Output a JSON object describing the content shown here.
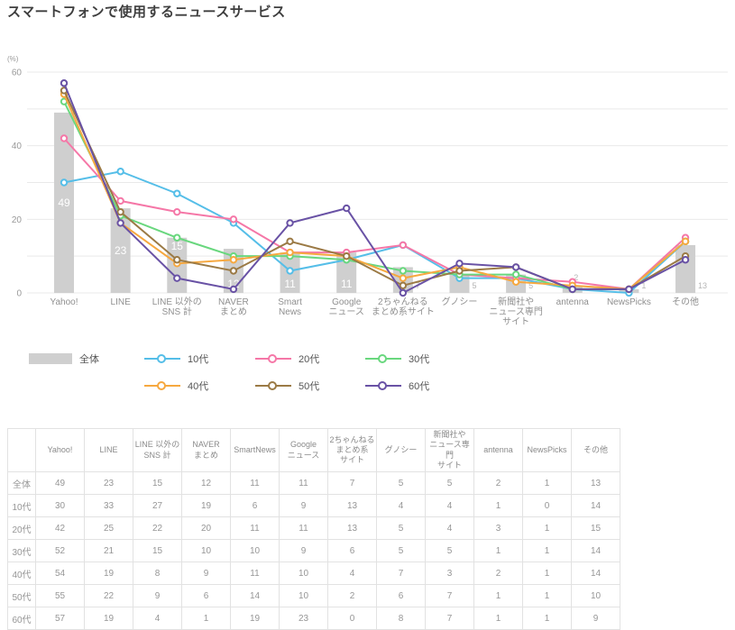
{
  "chart_data": {
    "type": "bar+line",
    "title": "スマートフォンで使用するニュースサービス",
    "unit_label": "(%)",
    "ylim": [
      0,
      60
    ],
    "ytick_labels": [
      0,
      20,
      40,
      60
    ],
    "grid_step": 10,
    "grid": true,
    "legend_position": "bottom",
    "categories": [
      "Yahoo!",
      "LINE",
      "LINE 以外の SNS 計",
      "NAVER まとめ",
      "Smart News",
      "Google ニュース",
      "2ちゃんねる まとめ系サイト",
      "グノシー",
      "新聞社や ニュース専門 サイト",
      "antenna",
      "NewsPicks",
      "その他"
    ],
    "category_axis_lines": [
      [
        "Yahoo!"
      ],
      [
        "LINE"
      ],
      [
        "LINE 以外の",
        "SNS 計"
      ],
      [
        "NAVER",
        "まとめ"
      ],
      [
        "Smart",
        "News"
      ],
      [
        "Google",
        "ニュース"
      ],
      [
        "2ちゃんねる",
        "まとめ系サイト"
      ],
      [
        "グノシー"
      ],
      [
        "新聞社や",
        "ニュース専門",
        "サイト"
      ],
      [
        "antenna"
      ],
      [
        "NewsPicks"
      ],
      [
        "その他"
      ]
    ],
    "bars": {
      "name": "全体",
      "color": "#CFCFCF",
      "values": [
        49,
        23,
        15,
        12,
        11,
        11,
        7,
        5,
        5,
        2,
        1,
        13
      ],
      "label_positions": [
        "middle",
        "middle",
        "top",
        "bottom",
        "bottom",
        "bottom",
        "right",
        "right",
        "right",
        "above",
        "right",
        "right"
      ]
    },
    "series": [
      {
        "name": "10代",
        "id": "10s",
        "color": "#55BEE8",
        "values": [
          30,
          33,
          27,
          19,
          6,
          9,
          13,
          4,
          4,
          1,
          0,
          14
        ]
      },
      {
        "name": "20代",
        "id": "20s",
        "color": "#F577A7",
        "values": [
          42,
          25,
          22,
          20,
          11,
          11,
          13,
          5,
          4,
          3,
          1,
          15
        ]
      },
      {
        "name": "30代",
        "id": "30s",
        "color": "#69D77E",
        "values": [
          52,
          21,
          15,
          10,
          10,
          9,
          6,
          5,
          5,
          1,
          1,
          14
        ]
      },
      {
        "name": "40代",
        "id": "40s",
        "color": "#F6A83F",
        "values": [
          54,
          19,
          8,
          9,
          11,
          10,
          4,
          7,
          3,
          2,
          1,
          14
        ]
      },
      {
        "name": "50代",
        "id": "50s",
        "color": "#9B7A45",
        "values": [
          55,
          22,
          9,
          6,
          14,
          10,
          2,
          6,
          7,
          1,
          1,
          10
        ]
      },
      {
        "name": "60代",
        "id": "60s",
        "color": "#6952A5",
        "values": [
          57,
          19,
          4,
          1,
          19,
          23,
          0,
          8,
          7,
          1,
          1,
          9
        ]
      }
    ]
  },
  "table": {
    "corner_label": "",
    "col_header_lines": [
      [
        "Yahoo!"
      ],
      [
        "LINE"
      ],
      [
        "LINE 以外の",
        "SNS 計"
      ],
      [
        "NAVER",
        "まとめ"
      ],
      [
        "SmartNews"
      ],
      [
        "Google",
        "ニュース"
      ],
      [
        "2ちゃんねる",
        "まとめ系",
        "サイト"
      ],
      [
        "グノシー"
      ],
      [
        "新聞社や",
        "ニュース専門",
        "サイト"
      ],
      [
        "antenna"
      ],
      [
        "NewsPicks"
      ],
      [
        "その他"
      ]
    ],
    "rows": [
      {
        "label": "全体",
        "values": [
          49,
          23,
          15,
          12,
          11,
          11,
          7,
          5,
          5,
          2,
          1,
          13
        ]
      },
      {
        "label": "10代",
        "values": [
          30,
          33,
          27,
          19,
          6,
          9,
          13,
          4,
          4,
          1,
          0,
          14
        ]
      },
      {
        "label": "20代",
        "values": [
          42,
          25,
          22,
          20,
          11,
          11,
          13,
          5,
          4,
          3,
          1,
          15
        ]
      },
      {
        "label": "30代",
        "values": [
          52,
          21,
          15,
          10,
          10,
          9,
          6,
          5,
          5,
          1,
          1,
          14
        ]
      },
      {
        "label": "40代",
        "values": [
          54,
          19,
          8,
          9,
          11,
          10,
          4,
          7,
          3,
          2,
          1,
          14
        ]
      },
      {
        "label": "50代",
        "values": [
          55,
          22,
          9,
          6,
          14,
          10,
          2,
          6,
          7,
          1,
          1,
          10
        ]
      },
      {
        "label": "60代",
        "values": [
          57,
          19,
          4,
          1,
          19,
          23,
          0,
          8,
          7,
          1,
          1,
          9
        ]
      }
    ]
  },
  "colors": {
    "bar": "#CFCFCF",
    "grid": "#E9E9E9",
    "axis_text": "#999999",
    "xlabel_text": "#8F8F8F",
    "title_text": "#3E3E3E",
    "bar_label_inside": "#FFFFFF",
    "bar_label_outside": "#B5B5B5",
    "table_border": "#E2E2E2",
    "table_text": "#969696"
  }
}
